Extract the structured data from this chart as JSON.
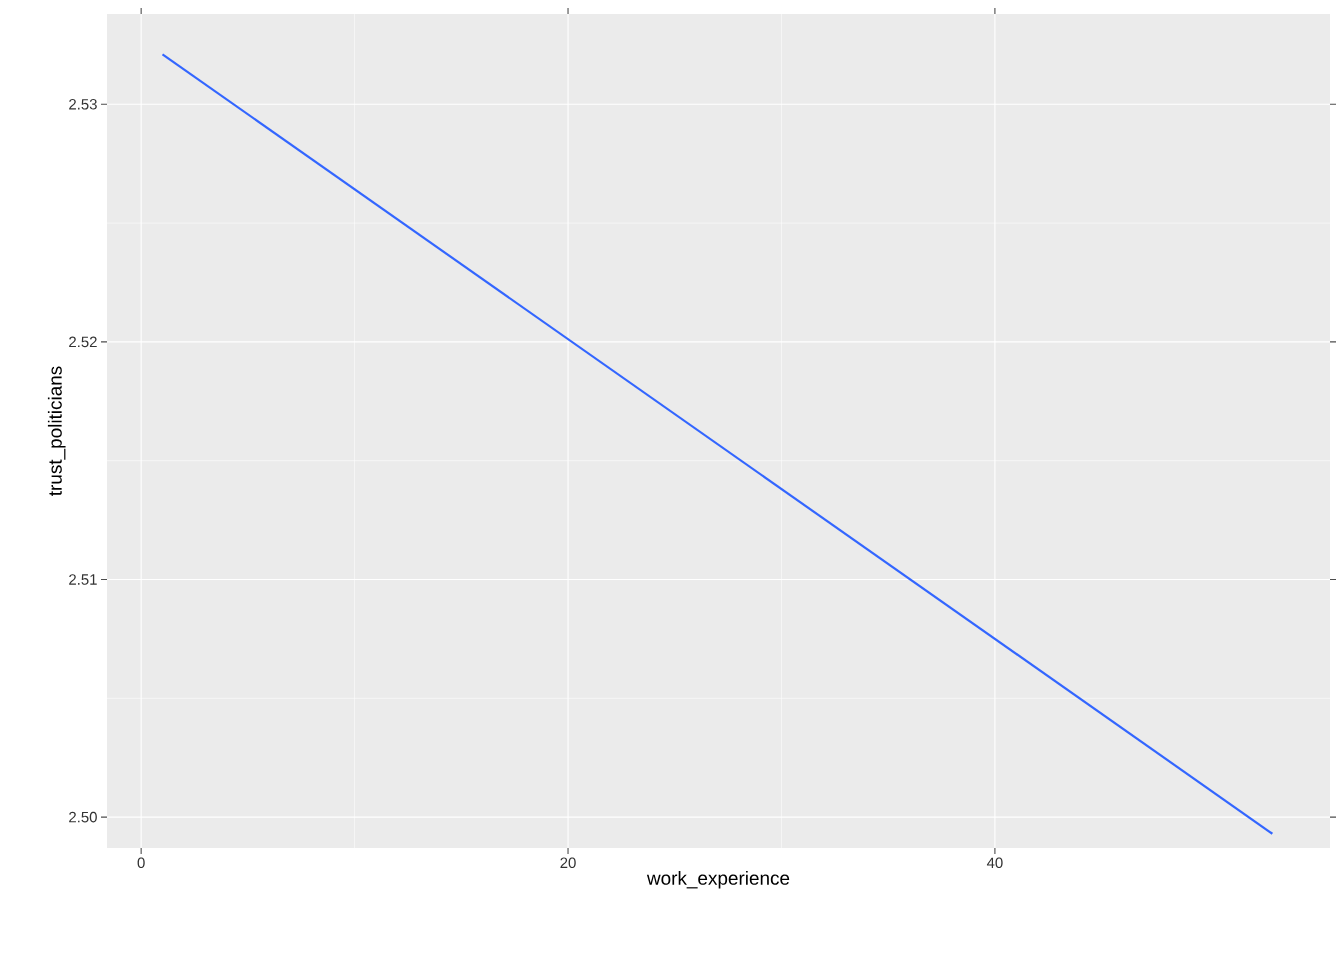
{
  "chart_data": {
    "type": "line",
    "xlabel": "work_experience",
    "ylabel": "trust_politicians",
    "x": [
      1,
      53
    ],
    "series": [
      {
        "color": "#3366ff",
        "values": [
          2.5321,
          2.4993
        ]
      }
    ],
    "xlim": [
      -1.6,
      55.7
    ],
    "ylim": [
      2.4987,
      2.5338
    ],
    "xticks": [
      0,
      20,
      40
    ],
    "yticks": [
      {
        "value": 2.5,
        "label": "2.50"
      },
      2.51,
      2.52,
      2.53
    ],
    "grid": true
  }
}
